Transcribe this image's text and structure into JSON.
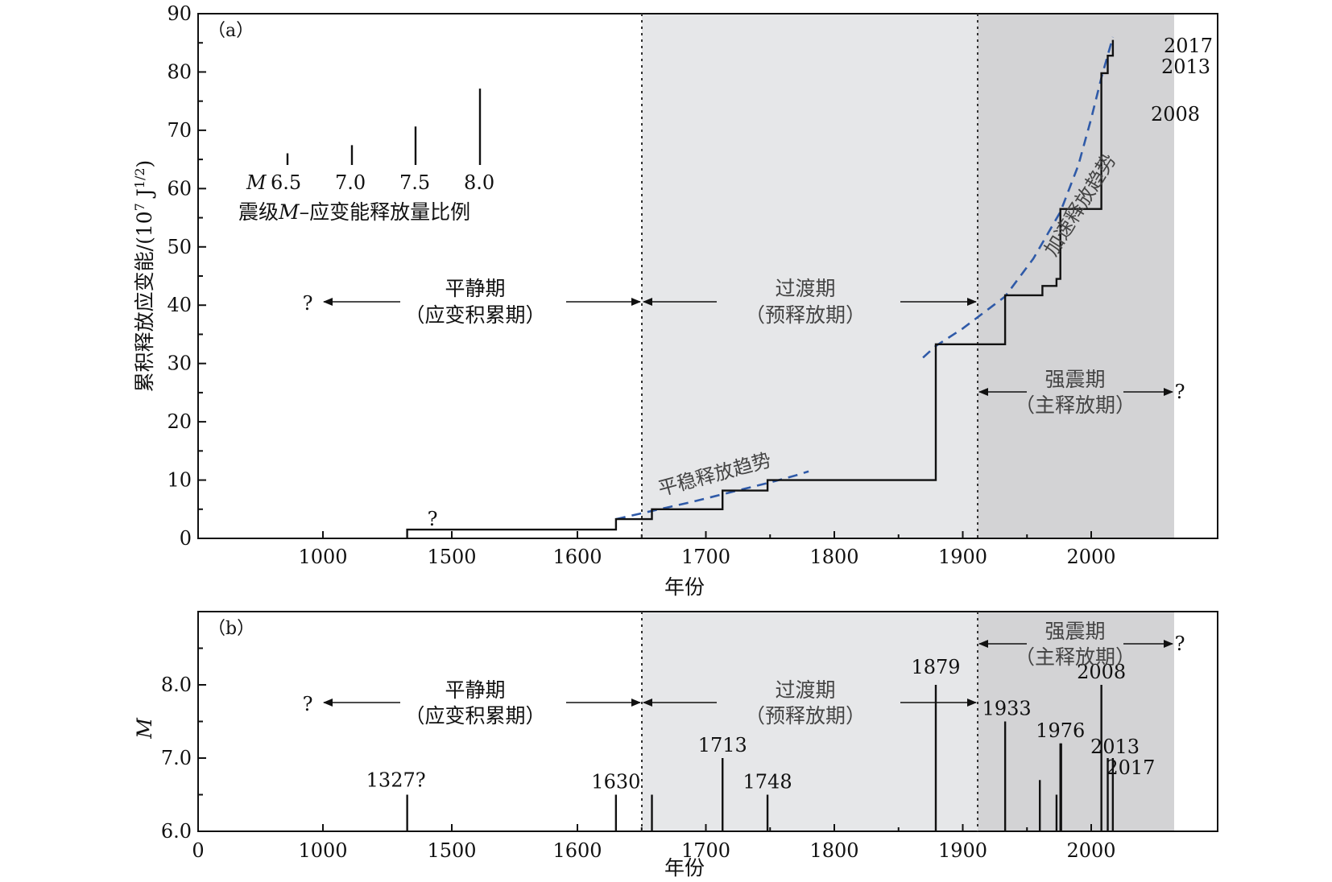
{
  "chart_data": [
    {
      "type": "line",
      "panel_label": "（a）",
      "xlabel": "年份",
      "ylabel": "累积释放应变能/(10",
      "ylabel_exp": "7",
      "ylabel_unit": " J",
      "ylabel_unit_exp": "1/2",
      "ylabel_close": ")",
      "x_ticks": [
        "1000",
        "1500",
        "1600",
        "1700",
        "1800",
        "1900",
        "2000"
      ],
      "y_ticks": [
        "0",
        "10",
        "20",
        "30",
        "40",
        "50",
        "60",
        "70",
        "80",
        "90"
      ],
      "ylim": [
        0,
        90
      ],
      "x_axis_note": "piecewise year axis: 1000 and 1500 compressed, linear from 1600 onward",
      "period_boundaries": [
        1630,
        1879
      ],
      "grid": false,
      "series": [
        {
          "x": [
            1327,
            1327,
            1630,
            1630,
            1658,
            1658,
            1713,
            1713,
            1748,
            1748,
            1879,
            1879,
            1933,
            1933,
            1962,
            1962,
            1973,
            1973,
            1976,
            1976,
            2008,
            2008,
            2013,
            2013,
            2017,
            2017
          ],
          "y": [
            0,
            1.5,
            1.5,
            3.3,
            3.3,
            5.0,
            5.0,
            8.2,
            8.2,
            10.0,
            10.0,
            33.3,
            33.3,
            41.7,
            41.7,
            43.3,
            43.3,
            44.5,
            44.5,
            56.5,
            56.5,
            79.8,
            79.8,
            82.8,
            82.8,
            85.5
          ]
        }
      ],
      "trend_lines": [
        {
          "label": "平稳释放趋势",
          "x": [
            1630,
            1650,
            1670,
            1690,
            1710,
            1730,
            1750,
            1770,
            1780
          ],
          "y": [
            3.3,
            4.3,
            5.3,
            6.3,
            7.4,
            8.5,
            9.6,
            10.8,
            11.5
          ]
        },
        {
          "label": "加速释放趋势",
          "x": [
            1869,
            1879,
            1900,
            1933,
            1955,
            1976,
            1990,
            2000,
            2008,
            2017
          ],
          "y": [
            31.0,
            33.0,
            36.0,
            41.5,
            48.0,
            56.0,
            64.0,
            72.0,
            79.0,
            86.0
          ]
        }
      ],
      "annotations": {
        "question_start": "?",
        "question_end": "?",
        "question_1327": "?",
        "year_2017": "2017",
        "year_2013": "2013",
        "year_2008": "2008",
        "trend_steady": "平稳释放趋势",
        "trend_accelerating": "加速释放趋势"
      },
      "scale_legend": {
        "magnitudes": [
          "6.5",
          "7.0",
          "7.5",
          "8.0"
        ],
        "bar_values": [
          2,
          3.4,
          6.6,
          13.1
        ],
        "m_symbol": "M",
        "caption_part1": "震级",
        "caption_m": "M",
        "caption_part2": "–应变能释放量比例"
      },
      "periods": {
        "quiet_title": "平静期",
        "quiet_sub": "（应变积累期）",
        "transition_title": "过渡期",
        "transition_sub": "（预释放期）",
        "strong_title": "强震期",
        "strong_sub": "（主释放期）"
      },
      "shading": {
        "transition_color": "#e6e7e9",
        "strong_color": "#d3d3d5"
      }
    },
    {
      "type": "bar",
      "panel_label": "（b）",
      "xlabel": "年份",
      "ylabel": "M",
      "x_ticks": [
        "0",
        "1000",
        "1500",
        "1600",
        "1700",
        "1800",
        "1900",
        "2000"
      ],
      "y_ticks": [
        "6.0",
        "7.0",
        "8.0"
      ],
      "ylim": [
        6.0,
        9.0
      ],
      "events": [
        {
          "year": 1327,
          "m": 6.5,
          "label": "1327?"
        },
        {
          "year": 1630,
          "m": 6.5,
          "label": "1630"
        },
        {
          "year": 1658,
          "m": 6.5
        },
        {
          "year": 1713,
          "m": 7.0,
          "label": "1713"
        },
        {
          "year": 1748,
          "m": 6.5,
          "label": "1748"
        },
        {
          "year": 1879,
          "m": 8.0,
          "label": "1879"
        },
        {
          "year": 1933,
          "m": 7.5,
          "label": "1933"
        },
        {
          "year": 1960,
          "m": 6.7
        },
        {
          "year": 1973,
          "m": 6.5
        },
        {
          "year": 1976,
          "m": 7.2,
          "label": "1976"
        },
        {
          "year": 1976.6,
          "m": 7.2
        },
        {
          "year": 2008,
          "m": 8.0,
          "label": "2008"
        },
        {
          "year": 2013,
          "m": 7.0,
          "label": "2013"
        },
        {
          "year": 2017,
          "m": 7.0,
          "label": "2017"
        }
      ],
      "annotations": {
        "question_start": "?",
        "question_end": "?"
      },
      "periods": {
        "quiet_title": "平静期",
        "quiet_sub": "（应变积累期）",
        "transition_title": "过渡期",
        "transition_sub": "（预释放期）",
        "strong_title": "强震期",
        "strong_sub": "（主释放期）"
      }
    }
  ]
}
